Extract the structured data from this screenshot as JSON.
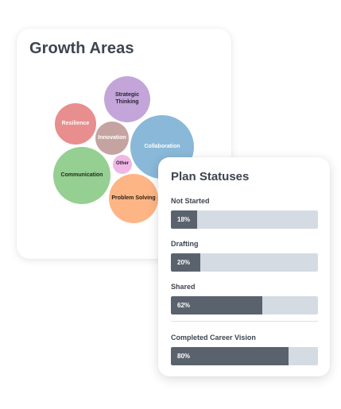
{
  "growth_areas": {
    "title": "Growth Areas",
    "bubbles": [
      {
        "label": "Strategic Thinking",
        "color": "#c3a5da"
      },
      {
        "label": "Resilience",
        "color": "#e88e8e"
      },
      {
        "label": "Innovation",
        "color": "#c5a3a1"
      },
      {
        "label": "Collaboration",
        "color": "#8ab8d8"
      },
      {
        "label": "Communication",
        "color": "#95cf91"
      },
      {
        "label": "Other",
        "color": "#efb7e3"
      },
      {
        "label": "Problem Solving",
        "color": "#fdb585"
      }
    ]
  },
  "plan_statuses": {
    "title": "Plan Statuses",
    "bar_color": "#5a636d",
    "track_color": "#d5dbe3",
    "items": [
      {
        "label": "Not Started",
        "value": "18%",
        "percent": 18
      },
      {
        "label": "Drafting",
        "value": "20%",
        "percent": 20
      },
      {
        "label": "Shared",
        "value": "62%",
        "percent": 62
      },
      {
        "label": "Completed Career Vision",
        "value": "80%",
        "percent": 80
      }
    ]
  }
}
